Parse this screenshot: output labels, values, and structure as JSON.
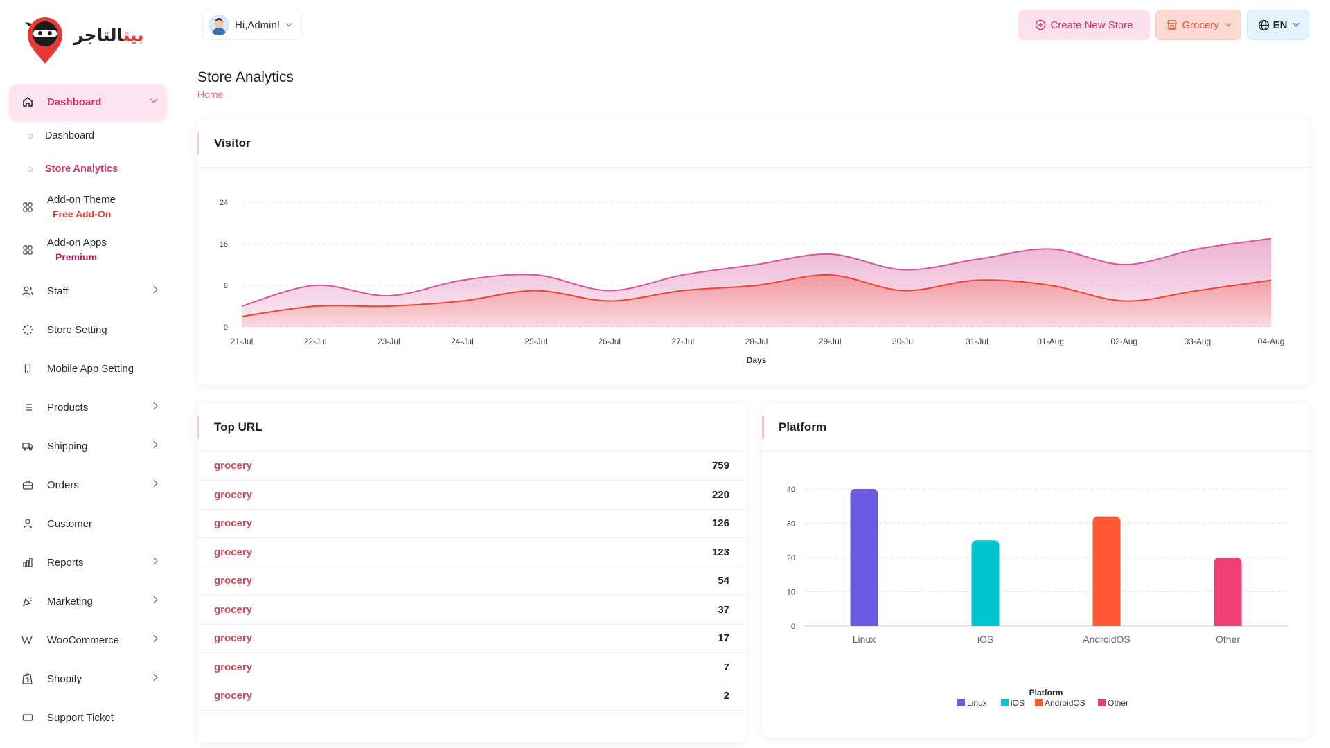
{
  "brand": {
    "logo_text_red": "بيت",
    "logo_text_dark": "التاجر"
  },
  "sidebar": {
    "dashboard": {
      "label": "Dashboard",
      "icon": "home-icon"
    },
    "sub_items": [
      {
        "label": "Dashboard",
        "selected": false
      },
      {
        "label": "Store Analytics",
        "selected": true
      }
    ],
    "addon_theme": {
      "label": "Add-on Theme",
      "badge": "Free Add-On",
      "icon": "apps-grid-icon"
    },
    "addon_apps": {
      "label": "Add-on Apps",
      "badge": "Premium",
      "icon": "apps-grid-icon"
    },
    "items": [
      {
        "label": "Staff",
        "icon": "users-icon",
        "has_children": true
      },
      {
        "label": "Store Setting",
        "icon": "settings-dots-icon",
        "has_children": false
      },
      {
        "label": "Mobile App Setting",
        "icon": "mobile-icon",
        "has_children": false
      },
      {
        "label": "Products",
        "icon": "list-icon",
        "has_children": true
      },
      {
        "label": "Shipping",
        "icon": "truck-icon",
        "has_children": true
      },
      {
        "label": "Orders",
        "icon": "briefcase-icon",
        "has_children": true
      },
      {
        "label": "Customer",
        "icon": "user-icon",
        "has_children": false
      },
      {
        "label": "Reports",
        "icon": "bar-chart-icon",
        "has_children": true
      },
      {
        "label": "Marketing",
        "icon": "confetti-icon",
        "has_children": true
      },
      {
        "label": "WooCommerce",
        "icon": "woocommerce-icon",
        "has_children": true
      },
      {
        "label": "Shopify",
        "icon": "shopify-icon",
        "has_children": true
      },
      {
        "label": "Support Ticket",
        "icon": "ticket-icon",
        "has_children": false
      }
    ]
  },
  "header": {
    "greeting": "Hi,Admin!",
    "create_store": "Create New Store",
    "store_selector": "Grocery",
    "language": "EN"
  },
  "page": {
    "title": "Store Analytics",
    "breadcrumb": "Home"
  },
  "visitor_card": {
    "title": "Visitor"
  },
  "top_url_card": {
    "title": "Top URL",
    "rows": [
      {
        "url": "grocery",
        "count": "759"
      },
      {
        "url": "grocery",
        "count": "220"
      },
      {
        "url": "grocery",
        "count": "126"
      },
      {
        "url": "grocery",
        "count": "123"
      },
      {
        "url": "grocery",
        "count": "54"
      },
      {
        "url": "grocery",
        "count": "37"
      },
      {
        "url": "grocery",
        "count": "17"
      },
      {
        "url": "grocery",
        "count": "7"
      },
      {
        "url": "grocery",
        "count": "2"
      }
    ]
  },
  "platform_card": {
    "title": "Platform"
  },
  "chart_data": [
    {
      "type": "area",
      "title": "",
      "xlabel": "Days",
      "ylabel": "",
      "ylim": [
        0,
        24
      ],
      "yticks": [
        0,
        8,
        16,
        24
      ],
      "grid": true,
      "legend": "none",
      "x": [
        "21-Jul",
        "22-Jul",
        "23-Jul",
        "24-Jul",
        "25-Jul",
        "26-Jul",
        "27-Jul",
        "28-Jul",
        "29-Jul",
        "30-Jul",
        "31-Jul",
        "01-Aug",
        "02-Aug",
        "03-Aug",
        "04-Aug"
      ],
      "series": [
        {
          "values": [
            4,
            8,
            6,
            9,
            10,
            7,
            10,
            12,
            14,
            11,
            13,
            15,
            12,
            15,
            17
          ],
          "color": "#d6559b"
        },
        {
          "values": [
            2,
            4,
            4,
            5,
            7,
            5,
            7,
            8,
            10,
            7,
            9,
            8,
            5,
            7,
            9
          ],
          "color": "#f0452e"
        }
      ]
    },
    {
      "type": "bar",
      "title": "",
      "xlabel": "",
      "ylabel": "",
      "ylim": [
        0,
        40
      ],
      "yticks": [
        0,
        10,
        20,
        30,
        40
      ],
      "grid": true,
      "legend": "bottom",
      "legend_title": "Platform",
      "categories": [
        "Linux",
        "iOS",
        "AndroidOS",
        "Other"
      ],
      "values": [
        40,
        25,
        32,
        20
      ],
      "colors": [
        "#6a5ae0",
        "#00c6d2",
        "#ff5733",
        "#ef3e77"
      ]
    }
  ]
}
